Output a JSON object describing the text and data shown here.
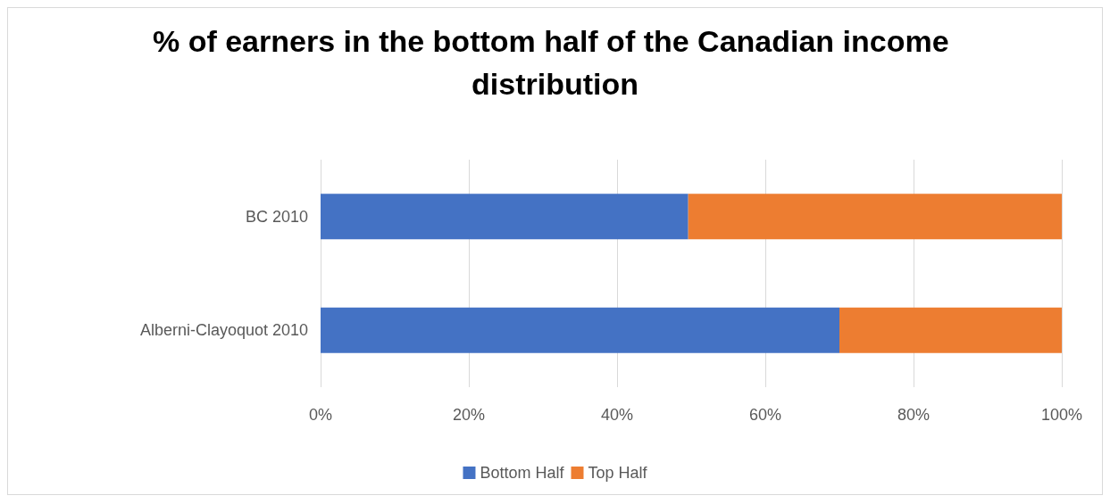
{
  "chart_data": {
    "type": "bar",
    "orientation": "horizontal",
    "stacked": true,
    "title": "% of earners in the bottom half of the Canadian income distribution",
    "categories": [
      "BC 2010",
      "Alberni-Clayoquot 2010"
    ],
    "series": [
      {
        "name": "Bottom Half",
        "color": "#4472c4",
        "values": [
          49.6,
          70
        ]
      },
      {
        "name": "Top Half",
        "color": "#ed7d31",
        "values": [
          50.4,
          30
        ]
      }
    ],
    "xlim": [
      0,
      100
    ],
    "xticks": [
      {
        "value": 0,
        "label": "0%"
      },
      {
        "value": 20,
        "label": "20%"
      },
      {
        "value": 40,
        "label": "40%"
      },
      {
        "value": 60,
        "label": "60%"
      },
      {
        "value": 80,
        "label": "80%"
      },
      {
        "value": 100,
        "label": "100%"
      }
    ],
    "grid": "x",
    "legend": "bottom"
  }
}
